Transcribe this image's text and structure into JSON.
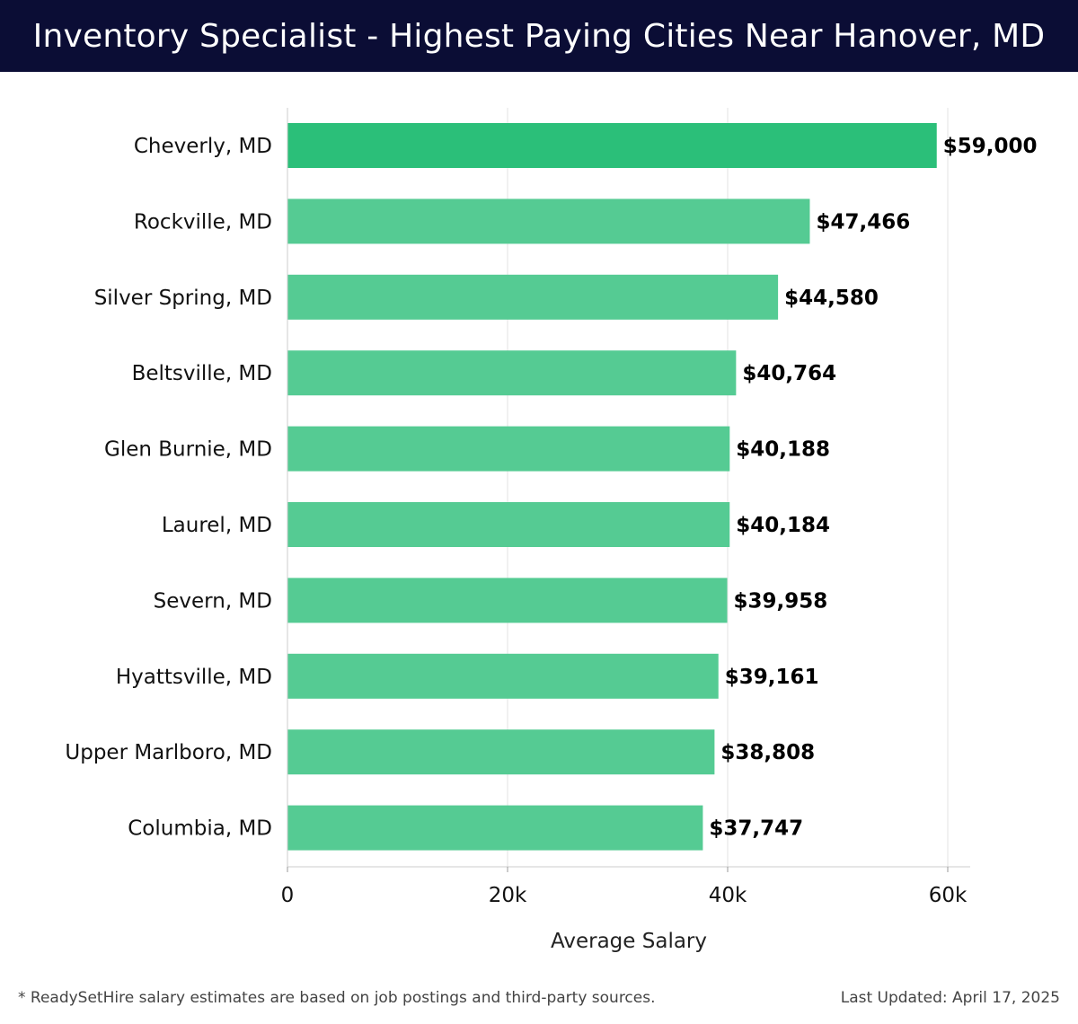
{
  "header": {
    "title": "Inventory Specialist - Highest Paying Cities Near Hanover, MD"
  },
  "footer": {
    "note": "* ReadySetHire salary estimates are based on job postings and third-party sources.",
    "updated": "Last Updated: April 17, 2025"
  },
  "colors": {
    "header_bg": "#0b0d35",
    "bar_top": "#2bbf79",
    "bar": "#55cb93"
  },
  "chart_data": {
    "type": "bar",
    "orientation": "horizontal",
    "categories": [
      "Cheverly, MD",
      "Rockville, MD",
      "Silver Spring, MD",
      "Beltsville, MD",
      "Glen Burnie, MD",
      "Laurel, MD",
      "Severn, MD",
      "Hyattsville, MD",
      "Upper Marlboro, MD",
      "Columbia, MD"
    ],
    "values": [
      59000,
      47466,
      44580,
      40764,
      40188,
      40184,
      39958,
      39161,
      38808,
      37747
    ],
    "value_labels": [
      "$59,000",
      "$47,466",
      "$44,580",
      "$40,764",
      "$40,188",
      "$40,184",
      "$39,958",
      "$39,161",
      "$38,808",
      "$37,747"
    ],
    "xlabel": "Average Salary",
    "ylabel": "",
    "xlim": [
      0,
      62000
    ],
    "xticks": [
      0,
      20000,
      40000,
      60000
    ],
    "xtick_labels": [
      "0",
      "20k",
      "40k",
      "60k"
    ],
    "grid": true,
    "legend": "none"
  }
}
